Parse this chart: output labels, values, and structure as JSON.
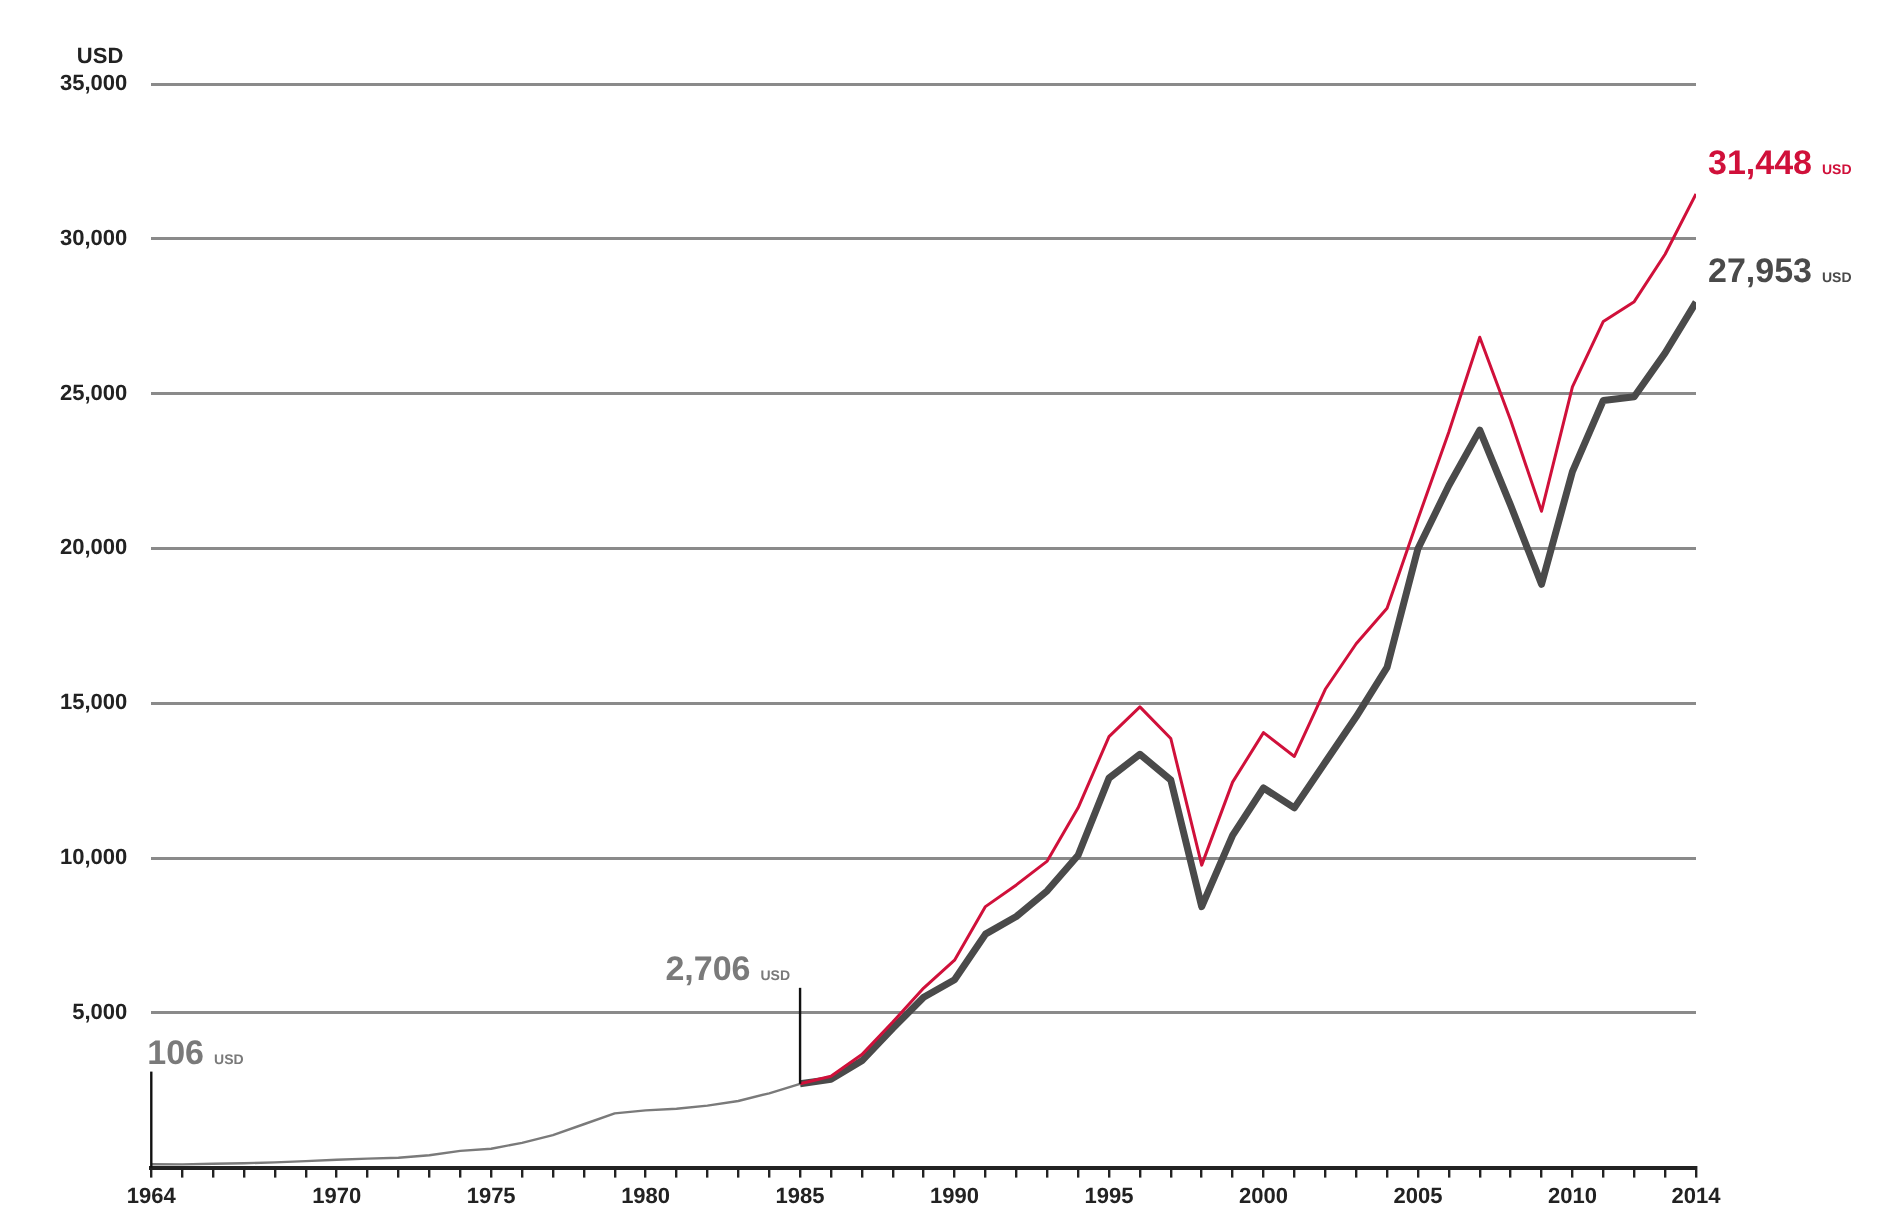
{
  "chart_data": {
    "type": "line",
    "ylabel": "USD",
    "xlim": [
      1964,
      2014
    ],
    "ylim": [
      0,
      35000
    ],
    "xticks": [
      1964,
      {
        "value": 1965,
        "label": null
      },
      {
        "value": 1966,
        "label": null
      },
      {
        "value": 1967,
        "label": null
      },
      {
        "value": 1968,
        "label": null
      },
      {
        "value": 1969,
        "label": null
      },
      1970,
      {
        "value": 1971,
        "label": null
      },
      {
        "value": 1972,
        "label": null
      },
      {
        "value": 1973,
        "label": null
      },
      {
        "value": 1974,
        "label": null
      },
      1975,
      {
        "value": 1976,
        "label": null
      },
      {
        "value": 1977,
        "label": null
      },
      {
        "value": 1978,
        "label": null
      },
      {
        "value": 1979,
        "label": null
      },
      1980,
      {
        "value": 1981,
        "label": null
      },
      {
        "value": 1982,
        "label": null
      },
      {
        "value": 1983,
        "label": null
      },
      {
        "value": 1984,
        "label": null
      },
      1985,
      {
        "value": 1986,
        "label": null
      },
      {
        "value": 1987,
        "label": null
      },
      {
        "value": 1988,
        "label": null
      },
      {
        "value": 1989,
        "label": null
      },
      1990,
      {
        "value": 1991,
        "label": null
      },
      {
        "value": 1992,
        "label": null
      },
      {
        "value": 1993,
        "label": null
      },
      {
        "value": 1994,
        "label": null
      },
      1995,
      {
        "value": 1996,
        "label": null
      },
      {
        "value": 1997,
        "label": null
      },
      {
        "value": 1998,
        "label": null
      },
      {
        "value": 1999,
        "label": null
      },
      2000,
      {
        "value": 2001,
        "label": null
      },
      {
        "value": 2002,
        "label": null
      },
      {
        "value": 2003,
        "label": null
      },
      {
        "value": 2004,
        "label": null
      },
      2005,
      {
        "value": 2006,
        "label": null
      },
      {
        "value": 2007,
        "label": null
      },
      {
        "value": 2008,
        "label": null
      },
      {
        "value": 2009,
        "label": null
      },
      2010,
      {
        "value": 2011,
        "label": null
      },
      {
        "value": 2012,
        "label": null
      },
      {
        "value": 2013,
        "label": null
      },
      2014
    ],
    "yticks": [
      {
        "value": 0,
        "label": null
      },
      {
        "value": 5000,
        "label": "5,000"
      },
      {
        "value": 10000,
        "label": "10,000"
      },
      {
        "value": 15000,
        "label": "15,000"
      },
      {
        "value": 20000,
        "label": "20,000"
      },
      {
        "value": 25000,
        "label": "25,000"
      },
      {
        "value": 30000,
        "label": "30,000"
      },
      {
        "value": 35000,
        "label": "35,000"
      }
    ],
    "grid": "y",
    "legend": false,
    "marker": "none",
    "line_style": "solid",
    "series": [
      {
        "color": "#7a7a7a",
        "x": [
          1964,
          1965,
          1966,
          1967,
          1968,
          1969,
          1970,
          1971,
          1972,
          1973,
          1974,
          1975,
          1976,
          1977,
          1978,
          1979,
          1980,
          1981,
          1982,
          1983,
          1984,
          1985
        ],
        "values": [
          106,
          105,
          125,
          140,
          170,
          210,
          255,
          290,
          320,
          400,
          540,
          610,
          800,
          1050,
          1400,
          1750,
          1850,
          1900,
          2000,
          2150,
          2400,
          2706
        ]
      },
      {
        "color": "#d0103a",
        "x": [
          1985,
          1986,
          1987,
          1988,
          1989,
          1990,
          1991,
          1992,
          1993,
          1994,
          1995,
          1996,
          1997,
          1998,
          1999,
          2000,
          2001,
          2002,
          2003,
          2004,
          2005,
          2006,
          2007,
          2008,
          2009,
          2010,
          2011,
          2012,
          2013,
          2014
        ],
        "values": [
          2706,
          2950,
          3650,
          4700,
          5800,
          6700,
          8430,
          9130,
          9900,
          11620,
          13920,
          14880,
          13860,
          9770,
          12450,
          14050,
          13280,
          15450,
          16920,
          18070,
          20950,
          23760,
          26820,
          24140,
          21200,
          25220,
          27330,
          27970,
          29500,
          31448
        ]
      },
      {
        "color": "#4a4a4a",
        "x": [
          1985,
          1986,
          1987,
          1988,
          1989,
          1990,
          1991,
          1992,
          1993,
          1994,
          1995,
          1996,
          1997,
          1998,
          1999,
          2000,
          2001,
          2002,
          2003,
          2004,
          2005,
          2006,
          2007,
          2008,
          2009,
          2010,
          2011,
          2012,
          2013,
          2014
        ],
        "values": [
          2706,
          2850,
          3450,
          4500,
          5500,
          6070,
          7540,
          8110,
          8940,
          10090,
          12580,
          13350,
          12520,
          8430,
          10730,
          12260,
          11620,
          13090,
          14560,
          16160,
          19990,
          22030,
          23820,
          21390,
          18840,
          22480,
          24780,
          24900,
          26310,
          27953
        ]
      }
    ],
    "annotations": [
      {
        "text": "106 USD",
        "x": 1964,
        "y": 106
      },
      {
        "text": "2,706 USD",
        "x": 1985,
        "y": 2706
      },
      {
        "text": "31,448 USD",
        "x": 2014,
        "y": 31448
      },
      {
        "text": "27,953 USD",
        "x": 2014,
        "y": 27953
      }
    ]
  }
}
